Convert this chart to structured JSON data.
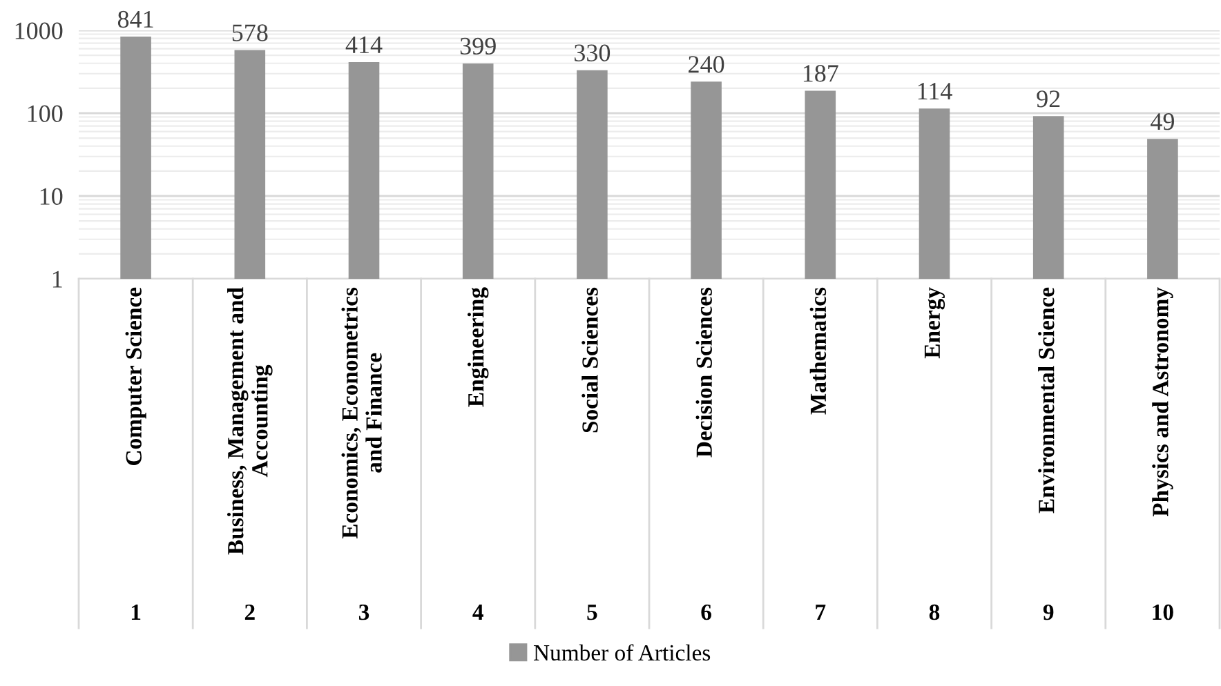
{
  "chart_data": {
    "type": "bar",
    "categories": [
      "Computer Science",
      "Business, Management and\nAccounting",
      "Economics, Econometrics\nand Finance",
      "Engineering",
      "Social Sciences",
      "Decision Sciences",
      "Mathematics",
      "Energy",
      "Environmental Science",
      "Physics and Astronomy"
    ],
    "annotations": [
      "1",
      "2",
      "3",
      "4",
      "5",
      "6",
      "7",
      "8",
      "9",
      "10"
    ],
    "series": [
      {
        "name": "Number of Articles",
        "color": "#969696",
        "values": [
          841,
          578,
          414,
          399,
          330,
          240,
          187,
          114,
          92,
          49
        ]
      }
    ],
    "log": "y",
    "ylim": [
      1,
      1000
    ],
    "yticks": [
      1,
      10,
      100,
      1000
    ],
    "grid": "y",
    "legend": "bottom",
    "data_labels": true
  }
}
